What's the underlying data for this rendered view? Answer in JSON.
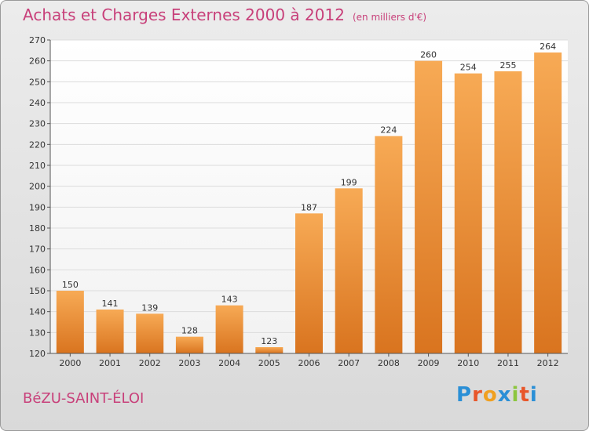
{
  "title": "Achats et Charges Externes 2000 à 2012",
  "subtitle": "(en milliers d'€)",
  "commune": "BéZU-SAINT-ÉLOI",
  "logo": {
    "letters": [
      "P",
      "r",
      "o",
      "x",
      "i",
      "t",
      "i"
    ],
    "colors": [
      "#2a8fd6",
      "#e8562a",
      "#f0a020",
      "#2a8fd6",
      "#8cc63e",
      "#e8562a",
      "#2a8fd6"
    ]
  },
  "colors": {
    "title": "#c8407a",
    "bar_top": "#f7aa55",
    "bar_bottom": "#d9741f"
  },
  "chart_data": {
    "type": "bar",
    "categories": [
      "2000",
      "2001",
      "2002",
      "2003",
      "2004",
      "2005",
      "2006",
      "2007",
      "2008",
      "2009",
      "2010",
      "2011",
      "2012"
    ],
    "values": [
      150,
      141,
      139,
      128,
      143,
      123,
      187,
      199,
      224,
      260,
      254,
      255,
      264
    ],
    "title": "Achats et Charges Externes 2000 à 2012",
    "ylim": [
      120,
      270
    ],
    "yticks": [
      120,
      130,
      140,
      150,
      160,
      170,
      180,
      190,
      200,
      210,
      220,
      230,
      240,
      250,
      260,
      270
    ],
    "grid": true,
    "data_labels": true
  }
}
